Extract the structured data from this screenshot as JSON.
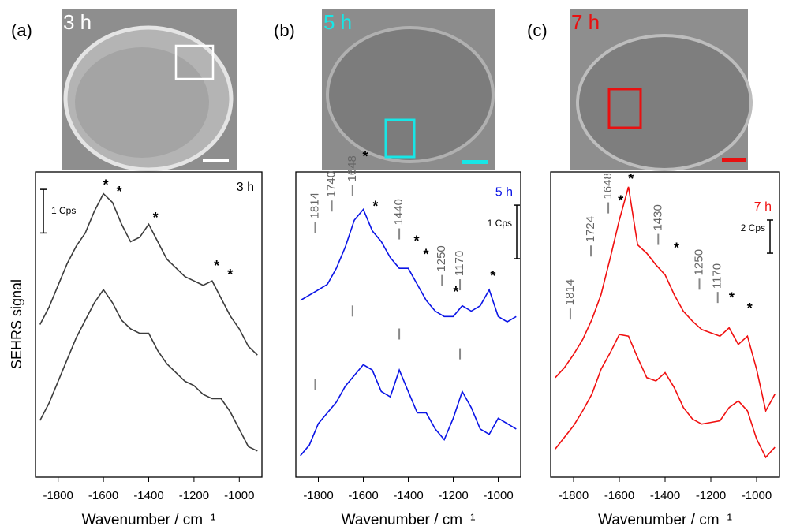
{
  "chart_data": [
    {
      "type": "line",
      "panel_label": "(a)",
      "image_label": "3 h",
      "title": "3 h",
      "ylabel": "SEHRS signal",
      "xlabel": "Wavenumber / cm⁻¹",
      "scale_bar": {
        "value": 1,
        "label": "1 Cps"
      },
      "xlim": [
        -1900,
        -900
      ],
      "xticks": [
        -1800,
        -1600,
        -1400,
        -1200,
        -1000
      ],
      "ylim": [
        0,
        7
      ],
      "x": [
        -1880,
        -1840,
        -1800,
        -1760,
        -1720,
        -1680,
        -1640,
        -1600,
        -1560,
        -1520,
        -1480,
        -1440,
        -1400,
        -1360,
        -1320,
        -1280,
        -1240,
        -1200,
        -1160,
        -1120,
        -1080,
        -1040,
        -1000,
        -960,
        -920
      ],
      "series": [
        {
          "color": "#3c3c3c",
          "values": [
            3.5,
            3.9,
            4.4,
            4.9,
            5.3,
            5.6,
            6.1,
            6.5,
            6.3,
            5.8,
            5.4,
            5.5,
            5.8,
            5.4,
            5.0,
            4.8,
            4.6,
            4.5,
            4.4,
            4.5,
            4.1,
            3.7,
            3.4,
            3.0,
            2.8
          ]
        },
        {
          "color": "#3c3c3c",
          "values": [
            1.3,
            1.7,
            2.2,
            2.7,
            3.2,
            3.6,
            4.0,
            4.3,
            4.0,
            3.6,
            3.4,
            3.3,
            3.3,
            2.9,
            2.6,
            2.4,
            2.2,
            2.1,
            1.9,
            1.8,
            1.8,
            1.5,
            1.1,
            0.7,
            0.6
          ]
        }
      ],
      "annotations": [
        {
          "text": "*",
          "x": -1590,
          "y": 6.75
        },
        {
          "text": "*",
          "x": -1530,
          "y": 6.6
        },
        {
          "text": "*",
          "x": -1370,
          "y": 6.0
        },
        {
          "text": "*",
          "x": -1100,
          "y": 4.9
        },
        {
          "text": "*",
          "x": -1040,
          "y": 4.7
        }
      ]
    },
    {
      "type": "line",
      "panel_label": "(b)",
      "image_label": "5 h",
      "title": "5 h",
      "xlabel": "Wavenumber / cm⁻¹",
      "scale_bar": {
        "value": 1,
        "label": "1 Cps"
      },
      "xlim": [
        -1900,
        -900
      ],
      "xticks": [
        -1800,
        -1600,
        -1400,
        -1200,
        -1000
      ],
      "ylim": [
        0,
        5.7
      ],
      "x": [
        -1880,
        -1840,
        -1800,
        -1760,
        -1720,
        -1680,
        -1640,
        -1600,
        -1560,
        -1520,
        -1480,
        -1440,
        -1400,
        -1360,
        -1320,
        -1280,
        -1240,
        -1200,
        -1160,
        -1120,
        -1080,
        -1040,
        -1000,
        -960,
        -920
      ],
      "series": [
        {
          "color": "#0a14e6",
          "values": [
            3.3,
            3.4,
            3.5,
            3.6,
            3.9,
            4.3,
            4.8,
            5.0,
            4.6,
            4.4,
            4.1,
            3.9,
            3.9,
            3.6,
            3.3,
            3.1,
            3.0,
            3.0,
            3.2,
            3.1,
            3.2,
            3.5,
            3.0,
            2.9,
            3.0
          ]
        },
        {
          "color": "#0a14e6",
          "values": [
            0.4,
            0.6,
            1.0,
            1.2,
            1.4,
            1.7,
            1.9,
            2.1,
            2.0,
            1.6,
            1.5,
            2.0,
            1.6,
            1.2,
            1.2,
            0.9,
            0.7,
            1.1,
            1.6,
            1.3,
            0.9,
            0.8,
            1.1,
            1.0,
            0.9
          ]
        }
      ],
      "annotations": [
        {
          "text": "*",
          "x": -1591,
          "y": 6.03
        },
        {
          "text": "*",
          "x": -1546,
          "y": 5.1
        },
        {
          "text": "*",
          "x": -1363,
          "y": 4.45
        },
        {
          "text": "*",
          "x": -1321,
          "y": 4.2
        },
        {
          "text": "*",
          "x": -1188,
          "y": 3.5
        },
        {
          "text": "*",
          "x": -1023,
          "y": 3.8
        }
      ],
      "peak_labels": [
        {
          "label": "1814",
          "x": -1814,
          "y": 4.56
        },
        {
          "label": "1740",
          "x": -1740,
          "y": 4.96
        },
        {
          "label": "1648",
          "x": -1648,
          "y": 5.25
        },
        {
          "label": "1440",
          "x": -1440,
          "y": 4.44
        },
        {
          "label": "1250",
          "x": -1250,
          "y": 3.57
        },
        {
          "label": "1170",
          "x": -1170,
          "y": 3.49
        }
      ],
      "peak_markers": [
        {
          "x": -1814,
          "y": 1.62
        },
        {
          "x": -1648,
          "y": 3.0
        },
        {
          "x": -1440,
          "y": 2.57
        },
        {
          "x": -1170,
          "y": 2.2
        }
      ]
    },
    {
      "type": "line",
      "panel_label": "(c)",
      "image_label": "7 h",
      "title": "7 h",
      "xlabel": "Wavenumber / cm⁻¹",
      "scale_bar": {
        "value": 2,
        "label": "2 Cps"
      },
      "xlim": [
        -1900,
        -900
      ],
      "xticks": [
        -1800,
        -1600,
        -1400,
        -1200,
        -1000
      ],
      "ylim": [
        0,
        18.4
      ],
      "x": [
        -1880,
        -1840,
        -1800,
        -1760,
        -1720,
        -1680,
        -1640,
        -1600,
        -1560,
        -1520,
        -1480,
        -1440,
        -1400,
        -1360,
        -1320,
        -1280,
        -1240,
        -1200,
        -1160,
        -1120,
        -1080,
        -1040,
        -1000,
        -960,
        -920
      ],
      "series": [
        {
          "color": "#f01010",
          "values": [
            6.0,
            6.6,
            7.4,
            8.3,
            9.5,
            11.0,
            13.2,
            15.5,
            17.5,
            14.0,
            13.5,
            12.8,
            12.2,
            11.0,
            10.0,
            9.4,
            8.9,
            8.7,
            8.5,
            9.0,
            8.0,
            8.5,
            6.5,
            4.0,
            5.0
          ]
        },
        {
          "color": "#f01010",
          "values": [
            1.7,
            2.4,
            3.1,
            4.0,
            5.0,
            6.5,
            7.5,
            8.6,
            8.5,
            7.2,
            6.0,
            5.8,
            6.3,
            5.4,
            4.2,
            3.5,
            3.2,
            3.3,
            3.4,
            4.2,
            4.6,
            4.0,
            2.3,
            1.2,
            1.8
          ]
        }
      ],
      "annotations": [
        {
          "text": "*",
          "x": -1594,
          "y": 16.8
        },
        {
          "text": "*",
          "x": -1549,
          "y": 18.1
        },
        {
          "text": "*",
          "x": -1350,
          "y": 13.95
        },
        {
          "text": "*",
          "x": -1109,
          "y": 10.95
        },
        {
          "text": "*",
          "x": -1030,
          "y": 10.3
        }
      ],
      "peak_labels": [
        {
          "label": "1814",
          "x": -1814,
          "y": 9.5
        },
        {
          "label": "1724",
          "x": -1724,
          "y": 13.3
        },
        {
          "label": "1648",
          "x": -1648,
          "y": 15.9
        },
        {
          "label": "1430",
          "x": -1430,
          "y": 14.0
        },
        {
          "label": "1250",
          "x": -1250,
          "y": 11.3
        },
        {
          "label": "1170",
          "x": -1170,
          "y": 10.5
        }
      ]
    }
  ]
}
